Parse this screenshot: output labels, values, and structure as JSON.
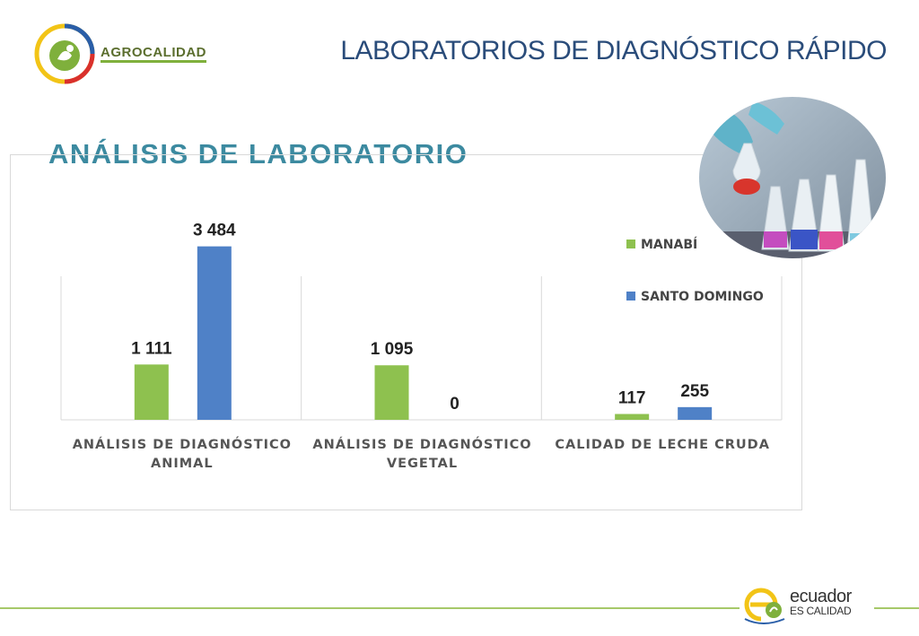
{
  "header": {
    "brand": "AGROCALIDAD",
    "title": "LABORATORIOS DE DIAGNÓSTICO RÁPIDO"
  },
  "section_title": "ANÁLISIS DE LABORATORIO",
  "footer": {
    "brand_line1": "ecuador",
    "brand_line2": "ES CALIDAD"
  },
  "colors": {
    "manabi": "#8ec14f",
    "santo_domingo": "#4f81c7"
  },
  "chart_data": {
    "type": "bar",
    "categories": [
      [
        "ANÁLISIS DE DIAGNÓSTICO",
        "ANIMAL"
      ],
      [
        "ANÁLISIS DE DIAGNÓSTICO",
        "VEGETAL"
      ],
      [
        "CALIDAD DE LECHE CRUDA"
      ]
    ],
    "series": [
      {
        "name": "MANABÍ",
        "values": [
          1111,
          1095,
          117
        ],
        "labels": [
          "1 111",
          "1 095",
          "117"
        ]
      },
      {
        "name": "SANTO DOMINGO",
        "values": [
          3484,
          0,
          255
        ],
        "labels": [
          "3 484",
          "0",
          "255"
        ]
      }
    ],
    "title": "",
    "xlabel": "",
    "ylabel": "",
    "ylim": [
      0,
      4000
    ],
    "grid": false,
    "legend": "right"
  }
}
